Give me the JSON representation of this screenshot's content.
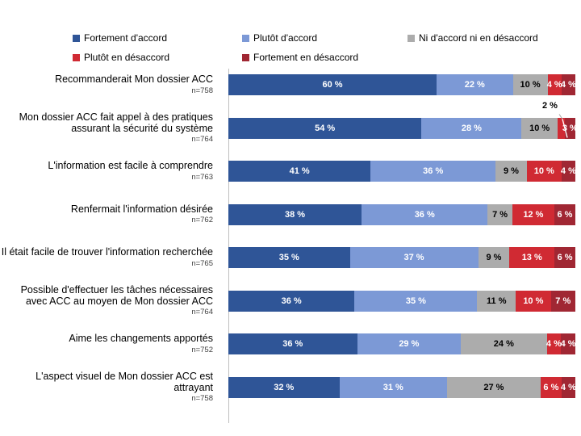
{
  "chart_data": {
    "type": "bar",
    "subtype": "horizontal-stacked-100",
    "title": "",
    "xlabel": "",
    "ylabel": "",
    "xlim": [
      0,
      100
    ],
    "grid": false,
    "value_suffix": " %",
    "sample_size_prefix": "n=",
    "legend_position": "top",
    "series": [
      {
        "name": "Fortement d'accord",
        "color": "#2F5597",
        "label_color": "#ffffff"
      },
      {
        "name": "Plutôt d'accord",
        "color": "#7C99D6",
        "label_color": "#ffffff"
      },
      {
        "name": "Ni d'accord ni en désaccord",
        "color": "#ACACAC",
        "label_color": "#000000"
      },
      {
        "name": "Plutôt en désaccord",
        "color": "#D02A33",
        "label_color": "#ffffff"
      },
      {
        "name": "Fortement en désaccord",
        "color": "#A02733",
        "label_color": "#ffffff"
      }
    ],
    "categories": [
      {
        "label": "Recommanderait Mon dossier ACC",
        "n": "758",
        "values": [
          60,
          22,
          10,
          4,
          4
        ]
      },
      {
        "label": "Mon dossier ACC fait appel à des pratiques assurant la sécurité du système",
        "n": "764",
        "values": [
          54,
          28,
          10,
          2,
          3
        ],
        "callout": {
          "series_index": 3,
          "text": "2 %"
        }
      },
      {
        "label": "L'information est facile à comprendre",
        "n": "763",
        "values": [
          41,
          36,
          9,
          10,
          4
        ]
      },
      {
        "label": "Renfermait l'information désirée",
        "n": "762",
        "values": [
          38,
          36,
          7,
          12,
          6
        ]
      },
      {
        "label": "Il était facile de trouver l'information recherchée",
        "n": "765",
        "values": [
          35,
          37,
          9,
          13,
          6
        ]
      },
      {
        "label": "Possible d'effectuer les tâches nécessaires avec ACC au moyen de Mon dossier ACC",
        "n": "764",
        "values": [
          36,
          35,
          11,
          10,
          7
        ]
      },
      {
        "label": "Aime les changements apportés",
        "n": "752",
        "values": [
          36,
          29,
          24,
          4,
          4
        ]
      },
      {
        "label": "L'aspect visuel de Mon dossier ACC est attrayant",
        "n": "758",
        "values": [
          32,
          31,
          27,
          6,
          4
        ]
      }
    ]
  }
}
